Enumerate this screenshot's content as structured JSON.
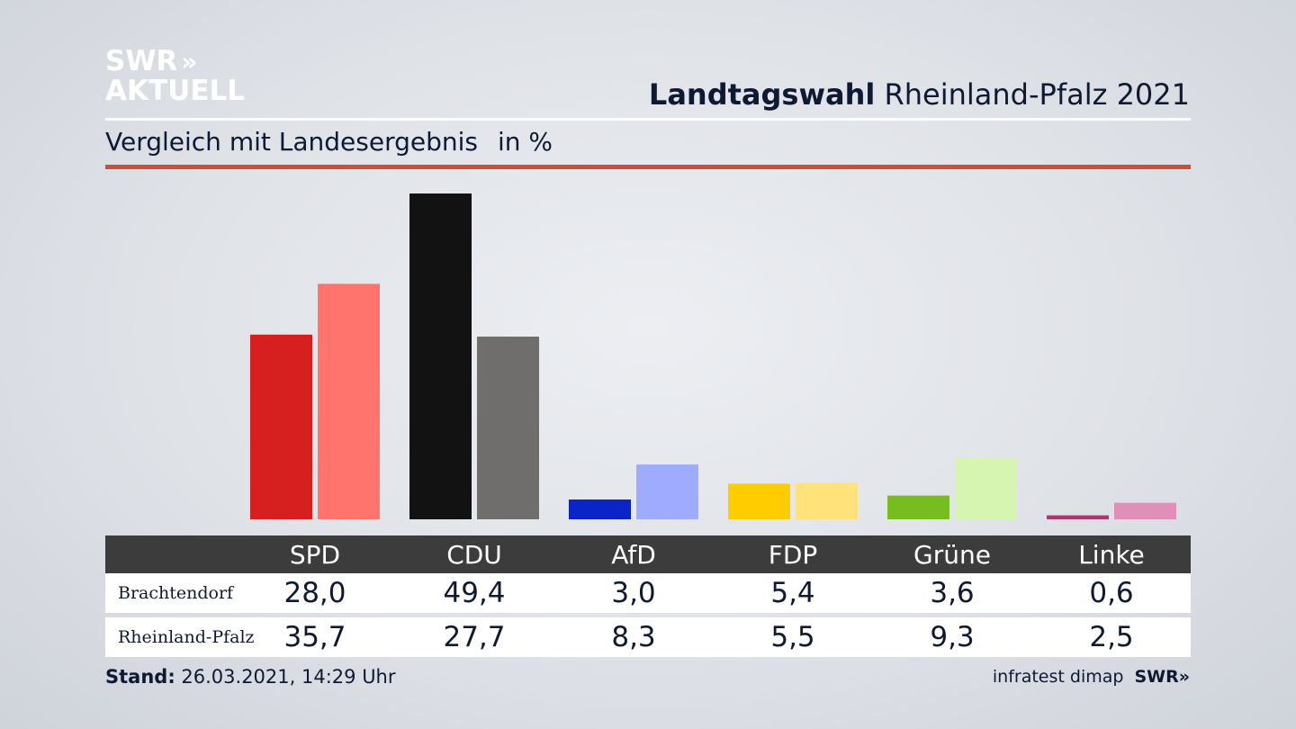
{
  "brand": {
    "line1": "SWR",
    "line1_mark": "»",
    "line2": "AKTUELL"
  },
  "header": {
    "title_bold": "Landtagswahl",
    "title_rest": "Rheinland-Pfalz 2021"
  },
  "subtitle": {
    "text": "Vergleich mit Landesergebnis",
    "unit": "in %"
  },
  "colors": {
    "accent_rule": "#c8503c",
    "table_header_bg": "#3c3c3c",
    "parties": [
      {
        "dark": "#d62020",
        "light": "#ff746c"
      },
      {
        "dark": "#121212",
        "light": "#6f6e6c"
      },
      {
        "dark": "#0a24c8",
        "light": "#9eabff"
      },
      {
        "dark": "#ffcc00",
        "light": "#ffe27a"
      },
      {
        "dark": "#78bd1f",
        "light": "#d6f5b0"
      },
      {
        "dark": "#b4336e",
        "light": "#e08fb8"
      }
    ]
  },
  "chart_data": {
    "type": "bar",
    "categories": [
      "SPD",
      "CDU",
      "AfD",
      "FDP",
      "Grüne",
      "Linke"
    ],
    "series": [
      {
        "name": "Brachtendorf",
        "values": [
          28.0,
          49.4,
          3.0,
          5.4,
          3.6,
          0.6
        ]
      },
      {
        "name": "Rheinland-Pfalz",
        "values": [
          35.7,
          27.7,
          8.3,
          5.5,
          9.3,
          2.5
        ]
      }
    ],
    "ylim": [
      0,
      49.4
    ],
    "grid": false,
    "legend": "none"
  },
  "table": {
    "headers": [
      "SPD",
      "CDU",
      "AfD",
      "FDP",
      "Grüne",
      "Linke"
    ],
    "rows": [
      {
        "label": "Brachtendorf",
        "values": [
          "28,0",
          "49,4",
          "3,0",
          "5,4",
          "3,6",
          "0,6"
        ]
      },
      {
        "label": "Rheinland-Pfalz",
        "values": [
          "35,7",
          "27,7",
          "8,3",
          "5,5",
          "9,3",
          "2,5"
        ]
      }
    ]
  },
  "footer": {
    "stand_label": "Stand:",
    "stand_value": "26.03.2021, 14:29 Uhr",
    "source": "infratest dimap",
    "brand": "SWR",
    "brand_mark": "»"
  }
}
